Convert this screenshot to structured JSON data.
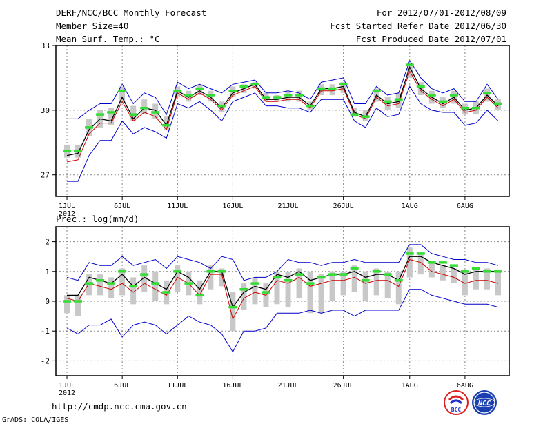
{
  "header": {
    "title": "DERF/NCC/BCC Monthly Forecast",
    "member_size": "Member Size=40",
    "variable": "Mean Surf. Temp.: °C",
    "period": "For 2012/07/01-2012/08/09",
    "start_date": "Fcst Started Refer Date 2012/06/30",
    "produced_date": "Fcst Produced Date 2012/07/01"
  },
  "footer": {
    "url": "http://cmdp.ncc.cma.gov.cn",
    "credit": "GrADS: COLA/IGES",
    "logo_bcc_text": "BCC",
    "logo_ncc_text": "NCC"
  },
  "colors": {
    "max": "#0000cc",
    "min": "#0000cc",
    "mean": "#000000",
    "median": "#cc0000",
    "obs": "#33dd33",
    "box": "#c8c8c8",
    "grid": "#888888"
  },
  "chart_data": [
    {
      "type": "line",
      "title": "Mean Surf. Temp.: °C",
      "x_tick_labels": [
        "1JUL",
        "6JUL",
        "11JUL",
        "16JUL",
        "21JUL",
        "26JUL",
        "1AUG",
        "6AUG"
      ],
      "x_tick_days": [
        1,
        6,
        11,
        16,
        21,
        26,
        32,
        37
      ],
      "x_sublabel": "2012",
      "ylim": [
        26,
        33
      ],
      "y_ticks": [
        27,
        30,
        33
      ],
      "x_days": [
        1,
        2,
        3,
        4,
        5,
        6,
        7,
        8,
        9,
        10,
        11,
        12,
        13,
        14,
        15,
        16,
        17,
        18,
        19,
        20,
        21,
        22,
        23,
        24,
        25,
        26,
        27,
        28,
        29,
        30,
        31,
        32,
        33,
        34,
        35,
        36,
        37,
        38,
        39,
        40
      ],
      "series": [
        {
          "name": "max",
          "values": [
            29.6,
            29.6,
            30.0,
            30.3,
            30.3,
            31.2,
            30.3,
            30.8,
            30.6,
            29.8,
            31.3,
            31.0,
            31.2,
            31.0,
            30.8,
            31.2,
            31.3,
            31.4,
            30.8,
            30.8,
            30.9,
            30.8,
            30.5,
            31.3,
            31.4,
            31.5,
            30.3,
            30.3,
            31.1,
            30.7,
            30.8,
            32.3,
            31.5,
            31.0,
            30.8,
            31.0,
            30.4,
            30.4,
            31.2,
            30.5
          ]
        },
        {
          "name": "mean",
          "values": [
            27.9,
            28.0,
            29.1,
            29.6,
            29.5,
            30.6,
            29.6,
            30.1,
            30.0,
            29.3,
            30.9,
            30.6,
            30.9,
            30.6,
            30.1,
            30.8,
            31.0,
            31.2,
            30.5,
            30.5,
            30.6,
            30.6,
            30.2,
            31.0,
            31.0,
            31.1,
            29.9,
            29.7,
            30.7,
            30.3,
            30.4,
            32.0,
            31.0,
            30.6,
            30.3,
            30.6,
            30.0,
            30.1,
            30.7,
            30.2
          ]
        },
        {
          "name": "median",
          "values": [
            27.6,
            27.7,
            28.9,
            29.4,
            29.4,
            30.4,
            29.5,
            29.9,
            29.7,
            29.1,
            30.8,
            30.5,
            30.8,
            30.5,
            30.0,
            30.7,
            30.9,
            31.1,
            30.4,
            30.4,
            30.5,
            30.5,
            30.1,
            30.9,
            30.9,
            31.0,
            29.8,
            29.6,
            30.6,
            30.2,
            30.3,
            31.8,
            30.9,
            30.5,
            30.2,
            30.5,
            29.9,
            30.0,
            30.6,
            30.1
          ]
        },
        {
          "name": "min",
          "values": [
            26.7,
            26.7,
            27.9,
            28.6,
            28.6,
            29.5,
            28.9,
            29.2,
            29.0,
            28.7,
            30.3,
            30.1,
            30.4,
            30.0,
            29.5,
            30.4,
            30.6,
            30.8,
            30.2,
            30.2,
            30.1,
            30.1,
            29.9,
            30.5,
            30.5,
            30.5,
            29.5,
            29.2,
            30.1,
            29.7,
            29.8,
            31.1,
            30.3,
            30.0,
            29.9,
            29.9,
            29.3,
            29.4,
            30.0,
            29.5
          ]
        },
        {
          "name": "obs",
          "values": [
            28.1,
            28.1,
            29.2,
            29.8,
            29.9,
            30.9,
            29.8,
            30.1,
            29.9,
            29.3,
            30.9,
            30.7,
            31.0,
            30.7,
            30.2,
            30.9,
            31.1,
            31.2,
            30.6,
            30.6,
            30.7,
            30.7,
            30.2,
            31.0,
            31.0,
            31.2,
            29.8,
            29.7,
            30.9,
            30.4,
            30.5,
            32.1,
            31.1,
            30.7,
            30.4,
            30.7,
            30.1,
            30.1,
            30.8,
            30.3
          ]
        },
        {
          "name": "box_low",
          "values": [
            27.8,
            27.8,
            28.8,
            29.2,
            29.3,
            30.3,
            29.5,
            29.8,
            29.6,
            29.1,
            30.6,
            30.4,
            30.7,
            30.4,
            29.9,
            30.6,
            30.8,
            31.0,
            30.4,
            30.4,
            30.4,
            30.4,
            30.0,
            30.7,
            30.7,
            30.8,
            29.7,
            29.5,
            30.4,
            30.0,
            30.1,
            31.5,
            30.7,
            30.3,
            30.1,
            30.3,
            29.8,
            29.8,
            30.4,
            30.0
          ]
        },
        {
          "name": "box_high",
          "values": [
            28.4,
            28.4,
            29.6,
            30.0,
            30.1,
            31.1,
            30.2,
            30.5,
            30.3,
            29.7,
            31.1,
            30.9,
            31.2,
            30.9,
            30.4,
            31.1,
            31.2,
            31.3,
            30.8,
            30.7,
            30.9,
            30.9,
            30.4,
            31.2,
            31.2,
            31.3,
            30.1,
            30.0,
            31.0,
            30.6,
            30.8,
            32.2,
            31.3,
            30.9,
            30.6,
            30.9,
            30.3,
            30.4,
            31.0,
            30.5
          ]
        }
      ]
    },
    {
      "type": "line",
      "title": "Prec.: log(mm/d)",
      "x_tick_labels": [
        "1JUL",
        "6JUL",
        "11JUL",
        "16JUL",
        "21JUL",
        "26JUL",
        "1AUG",
        "6AUG"
      ],
      "x_tick_days": [
        1,
        6,
        11,
        16,
        21,
        26,
        32,
        37
      ],
      "x_sublabel": "2012",
      "ylim": [
        -2.5,
        2.5
      ],
      "y_ticks": [
        -2,
        -1,
        0,
        1,
        2
      ],
      "x_days": [
        1,
        2,
        3,
        4,
        5,
        6,
        7,
        8,
        9,
        10,
        11,
        12,
        13,
        14,
        15,
        16,
        17,
        18,
        19,
        20,
        21,
        22,
        23,
        24,
        25,
        26,
        27,
        28,
        29,
        30,
        31,
        32,
        33,
        34,
        35,
        36,
        37,
        38,
        39,
        40
      ],
      "series": [
        {
          "name": "max",
          "values": [
            0.8,
            0.7,
            1.3,
            1.2,
            1.2,
            1.5,
            1.2,
            1.3,
            1.4,
            1.1,
            1.5,
            1.4,
            1.3,
            1.1,
            1.5,
            1.4,
            0.7,
            0.8,
            0.8,
            1.0,
            1.4,
            1.3,
            1.3,
            1.2,
            1.3,
            1.3,
            1.4,
            1.3,
            1.3,
            1.3,
            1.3,
            1.9,
            1.9,
            1.6,
            1.5,
            1.4,
            1.4,
            1.3,
            1.3,
            1.2
          ]
        },
        {
          "name": "mean",
          "values": [
            0.2,
            0.2,
            0.8,
            0.7,
            0.6,
            0.9,
            0.5,
            0.8,
            0.6,
            0.4,
            1.0,
            0.8,
            0.4,
            1.0,
            1.0,
            -0.2,
            0.3,
            0.5,
            0.4,
            0.9,
            0.8,
            1.0,
            0.7,
            0.8,
            0.9,
            0.9,
            1.0,
            0.8,
            0.9,
            0.9,
            0.7,
            1.5,
            1.5,
            1.3,
            1.2,
            1.1,
            0.9,
            1.0,
            1.0,
            1.0
          ]
        },
        {
          "name": "median",
          "values": [
            0.1,
            0.0,
            0.6,
            0.5,
            0.4,
            0.6,
            0.3,
            0.6,
            0.4,
            0.2,
            0.8,
            0.6,
            0.2,
            0.9,
            0.9,
            -0.6,
            0.1,
            0.3,
            0.2,
            0.7,
            0.6,
            0.8,
            0.5,
            0.6,
            0.7,
            0.7,
            0.8,
            0.6,
            0.7,
            0.7,
            0.5,
            1.4,
            1.3,
            1.0,
            0.9,
            0.8,
            0.6,
            0.7,
            0.7,
            0.6
          ]
        },
        {
          "name": "min",
          "values": [
            -0.9,
            -1.1,
            -0.8,
            -0.8,
            -0.6,
            -1.2,
            -0.8,
            -0.7,
            -0.8,
            -1.1,
            -0.8,
            -0.5,
            -0.7,
            -0.8,
            -1.1,
            -1.7,
            -1.0,
            -1.0,
            -0.9,
            -0.4,
            -0.4,
            -0.4,
            -0.3,
            -0.4,
            -0.3,
            -0.3,
            -0.5,
            -0.3,
            -0.3,
            -0.3,
            -0.3,
            0.4,
            0.4,
            0.2,
            0.1,
            0.0,
            -0.1,
            -0.1,
            -0.1,
            -0.2
          ]
        },
        {
          "name": "obs",
          "values": [
            0.0,
            0.0,
            0.6,
            0.7,
            0.6,
            1.0,
            0.5,
            0.9,
            0.6,
            0.3,
            1.0,
            0.6,
            0.2,
            1.0,
            1.0,
            -0.2,
            0.4,
            0.6,
            0.3,
            0.8,
            0.7,
            0.9,
            0.6,
            0.8,
            0.9,
            0.9,
            1.1,
            0.7,
            1.0,
            0.9,
            0.7,
            1.6,
            1.6,
            1.3,
            1.3,
            1.2,
            1.0,
            1.1,
            1.0,
            1.0
          ]
        },
        {
          "name": "box_low",
          "values": [
            -0.4,
            -0.5,
            0.2,
            0.2,
            0.1,
            0.2,
            -0.1,
            0.3,
            0.0,
            -0.1,
            0.3,
            0.2,
            -0.1,
            0.4,
            0.5,
            -1.0,
            -0.3,
            -0.1,
            -0.2,
            -0.1,
            -0.2,
            0.1,
            -0.4,
            -0.4,
            0.0,
            0.2,
            0.3,
            0.0,
            0.2,
            0.1,
            -0.1,
            0.8,
            0.9,
            0.8,
            0.7,
            0.6,
            0.2,
            0.4,
            0.4,
            0.2
          ]
        },
        {
          "name": "box_high",
          "values": [
            0.2,
            0.2,
            0.9,
            0.9,
            0.8,
            1.1,
            0.8,
            1.2,
            1.0,
            0.7,
            1.2,
            1.0,
            0.7,
            1.2,
            1.1,
            0.3,
            0.6,
            0.8,
            0.6,
            1.0,
            1.0,
            1.1,
            1.0,
            0.9,
            1.0,
            1.0,
            1.2,
            1.0,
            1.1,
            1.0,
            1.0,
            1.8,
            1.6,
            1.3,
            1.2,
            1.1,
            1.0,
            1.1,
            1.1,
            1.0
          ]
        }
      ]
    }
  ]
}
